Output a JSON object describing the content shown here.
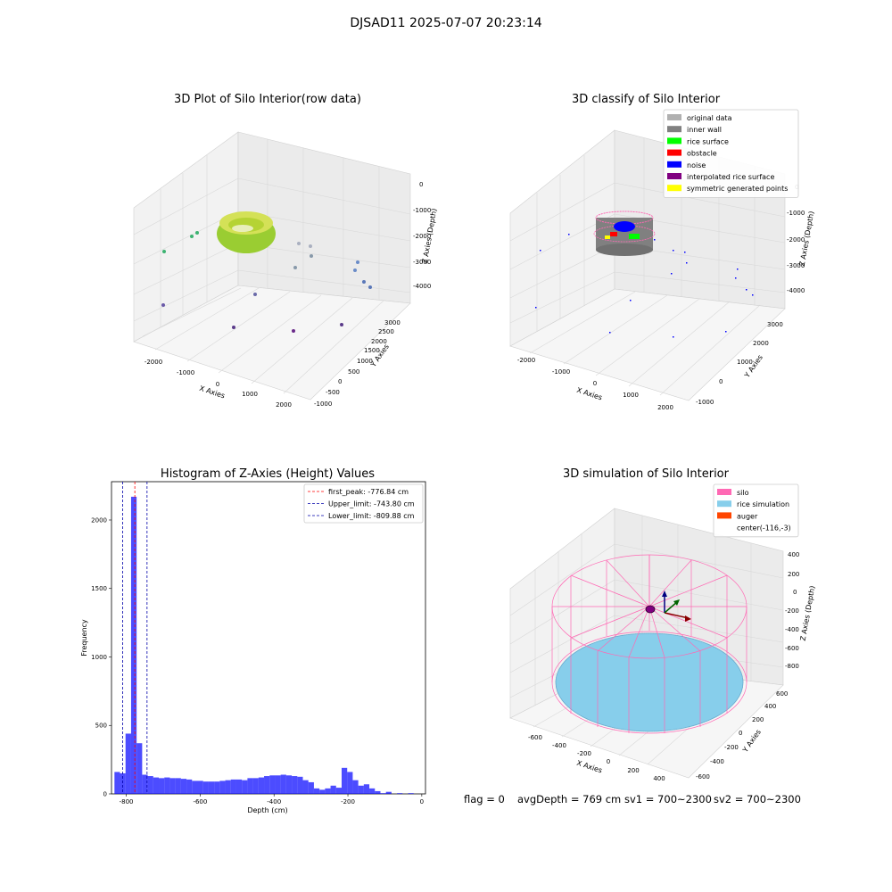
{
  "figure": {
    "suptitle": "DJSAD11 2025-07-07 20:23:14"
  },
  "panels": {
    "raw": {
      "title": "3D Plot of Silo Interior(row data)",
      "xlabel": "X Axies",
      "ylabel": "Y Axies",
      "zlabel": "Z Axies (Depth)",
      "xticks": [
        "-2000",
        "-1000",
        "0",
        "1000",
        "2000"
      ],
      "yticks": [
        "-1000",
        "-500",
        "0",
        "500",
        "1000",
        "1500",
        "2000",
        "2500",
        "3000"
      ],
      "zticks": [
        "0",
        "-1000",
        "-2000",
        "-3000",
        "-4000"
      ]
    },
    "classify": {
      "title": "3D classify of Silo Interior",
      "xlabel": "X Axies",
      "ylabel": "Y Axies",
      "zlabel": "Z Axies (Depth)",
      "xticks": [
        "-2000",
        "-1000",
        "0",
        "1000",
        "2000"
      ],
      "yticks": [
        "-1000",
        "0",
        "1000",
        "2000",
        "3000"
      ],
      "zticks": [
        "0",
        "-1000",
        "-2000",
        "-3000",
        "-4000"
      ],
      "legend": [
        {
          "label": "original data",
          "color": "#b0b0b0"
        },
        {
          "label": "inner wall",
          "color": "#808080"
        },
        {
          "label": "rice surface",
          "color": "#00ff00"
        },
        {
          "label": "obstacle",
          "color": "#ff0000"
        },
        {
          "label": "noise",
          "color": "#0000ff"
        },
        {
          "label": "interpolated rice surface",
          "color": "#800080"
        },
        {
          "label": "symmetric generated points",
          "color": "#ffff00"
        }
      ]
    },
    "simulation": {
      "title": "3D simulation of Silo Interior",
      "xlabel": "X Axies",
      "ylabel": "Y Axies",
      "zlabel": "Z Axies (Depth)",
      "xticks": [
        "-600",
        "-400",
        "-200",
        "0",
        "200",
        "400"
      ],
      "yticks": [
        "-600",
        "-400",
        "-200",
        "0",
        "200",
        "400",
        "600"
      ],
      "zticks": [
        "400",
        "200",
        "0",
        "-200",
        "-400",
        "-600",
        "-800"
      ],
      "legend": [
        {
          "label": "silo",
          "color": "#ff69b4"
        },
        {
          "label": "rice simulation",
          "color": "#87ceeb"
        },
        {
          "label": "auger",
          "color": "#ff4500"
        },
        {
          "label": "center(-116,-3)",
          "color": "none"
        }
      ]
    }
  },
  "chart_data": {
    "type": "bar",
    "title": "Histogram of Z-Axies (Height) Values",
    "xlabel": "Depth (cm)",
    "ylabel": "Frequency",
    "xlim": [
      -840,
      10
    ],
    "ylim": [
      0,
      2280
    ],
    "xticks": [
      -800,
      -600,
      -400,
      -200,
      0
    ],
    "yticks": [
      0,
      500,
      1000,
      1500,
      2000
    ],
    "bin_width": 15,
    "bin_starts": [
      -832,
      -817,
      -802,
      -787,
      -772,
      -757,
      -742,
      -727,
      -712,
      -697,
      -682,
      -667,
      -652,
      -637,
      -622,
      -607,
      -592,
      -577,
      -562,
      -547,
      -532,
      -517,
      -502,
      -487,
      -472,
      -457,
      -442,
      -427,
      -412,
      -397,
      -382,
      -367,
      -352,
      -337,
      -322,
      -307,
      -292,
      -277,
      -262,
      -247,
      -232,
      -217,
      -202,
      -187,
      -172,
      -157,
      -142,
      -127,
      -112,
      -97,
      -82,
      -67,
      -52,
      -37,
      -22,
      -7
    ],
    "values": [
      160,
      150,
      440,
      2170,
      370,
      140,
      130,
      120,
      115,
      120,
      115,
      115,
      110,
      105,
      95,
      95,
      90,
      90,
      90,
      95,
      100,
      105,
      105,
      100,
      115,
      115,
      120,
      130,
      135,
      135,
      140,
      135,
      130,
      125,
      100,
      85,
      40,
      30,
      40,
      60,
      45,
      190,
      160,
      100,
      60,
      70,
      40,
      20,
      5,
      15,
      0,
      5,
      0,
      5,
      0,
      0
    ],
    "bar_color": "#0000ff",
    "reference_lines": [
      {
        "label": "first_peak: -776.84 cm",
        "x": -776.84,
        "color": "#ff0000"
      },
      {
        "label": "Upper_limit: -743.80 cm",
        "x": -743.8,
        "color": "#0000aa"
      },
      {
        "label": "Lower_limit: -809.88 cm",
        "x": -809.88,
        "color": "#0000aa"
      }
    ]
  },
  "status": {
    "flag": "flag = 0",
    "avg_depth": "avgDepth = 769 cm",
    "sv1": "sv1 = 700~2300",
    "sv2": "sv2 = 700~2300"
  }
}
